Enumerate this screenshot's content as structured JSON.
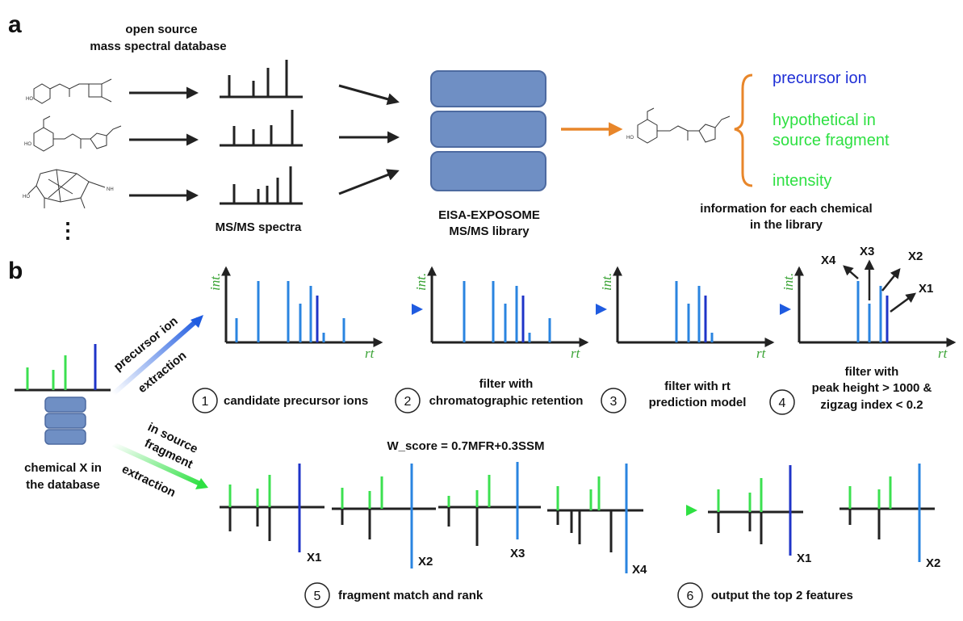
{
  "panel_a": {
    "label": "a",
    "db_title_line1": "open source",
    "db_title_line2": "mass spectral database",
    "msms_label": "MS/MS spectra",
    "library_line1": "EISA-EXPOSOME",
    "library_line2": "MS/MS library",
    "info_precursor": "precursor ion",
    "info_hyp_line1": "hypothetical in",
    "info_hyp_line2": "source fragment",
    "info_intensity": "intensity",
    "info_caption_line1": "information for each chemical",
    "info_caption_line2": "in the library",
    "ellipsis": "⋮"
  },
  "panel_b": {
    "label": "b",
    "chem_line1": "chemical X in",
    "chem_line2": "the database",
    "precursor_arrow_line1": "precursor ion",
    "precursor_arrow_line2": "extraction",
    "isf_arrow_line1": "in source",
    "isf_arrow_line2": "fragment",
    "isf_arrow_line3": "extraction",
    "axis_y": "int.",
    "axis_x": "rt",
    "steps": [
      {
        "num": "1",
        "text_line1": "candidate precursor ions",
        "text_line2": ""
      },
      {
        "num": "2",
        "text_line1": "filter with",
        "text_line2": "chromatographic retention"
      },
      {
        "num": "3",
        "text_line1": "filter with rt",
        "text_line2": "prediction model"
      },
      {
        "num": "4",
        "text_line1": "filter with",
        "text_line2": "peak height > 1000 &",
        "text_line3": "zigzag index < 0.2"
      },
      {
        "num": "5",
        "text_line1": "fragment match and rank"
      },
      {
        "num": "6",
        "text_line1": "output the top 2 features"
      }
    ],
    "wscore": "W_score = 0.7MFR+0.3SSM",
    "feature_labels": [
      "X1",
      "X2",
      "X3",
      "X4"
    ],
    "top_labels": [
      "X1",
      "X2"
    ]
  },
  "colors": {
    "blue_peak": "#2a84e0",
    "dark_blue_peak": "#1f34c8",
    "green_peak": "#3ce050",
    "orange": "#e8862a",
    "db_fill": "#6f8fc4",
    "db_stroke": "#4d6aa0"
  }
}
